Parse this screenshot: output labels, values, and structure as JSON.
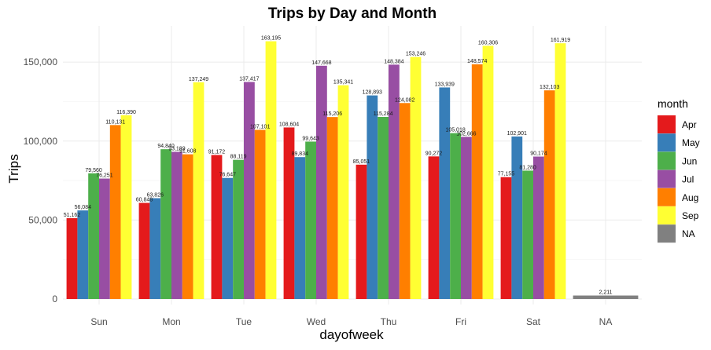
{
  "chart_data": {
    "type": "bar",
    "title": "Trips by Day and Month",
    "xlabel": "dayofweek",
    "ylabel": "Trips",
    "categories": [
      "Sun",
      "Mon",
      "Tue",
      "Wed",
      "Thu",
      "Fri",
      "Sat",
      "NA"
    ],
    "ylim": [
      0,
      170000
    ],
    "yticks": [
      0,
      50000,
      100000,
      150000
    ],
    "ytick_labels": [
      "0",
      "50,000",
      "100,000",
      "150,000"
    ],
    "grid": true,
    "legend": {
      "title": "month",
      "position": "right"
    },
    "series": [
      {
        "name": "Apr",
        "color": "#E41A1C",
        "values": [
          51162,
          60848,
          91172,
          108604,
          85051,
          90272,
          77155,
          null
        ],
        "labels": [
          "51,162",
          "60,848",
          "91,172",
          "108,604",
          "85,051",
          "90,272",
          "77,155",
          null
        ]
      },
      {
        "name": "May",
        "color": "#377EB8",
        "values": [
          56084,
          63826,
          76647,
          89834,
          128893,
          133939,
          102901,
          null
        ],
        "labels": [
          "56,084",
          "63,826",
          "76,647",
          "89,834",
          "128,893",
          "133,939",
          "102,901",
          null
        ]
      },
      {
        "name": "Jun",
        "color": "#4DAF4A",
        "values": [
          79560,
          94840,
          88119,
          99643,
          115284,
          105018,
          81280,
          null
        ],
        "labels": [
          "79,560",
          "94,840",
          "88,119",
          "99,643",
          "115,284",
          "105,018",
          "81,280",
          null
        ]
      },
      {
        "name": "Jul",
        "color": "#984EA3",
        "values": [
          76251,
          93189,
          137417,
          147668,
          148384,
          102666,
          90174,
          null
        ],
        "labels": [
          "76,251",
          "93,189",
          "137,417",
          "147,668",
          "148,384",
          "102,666",
          "90,174",
          null
        ]
      },
      {
        "name": "Aug",
        "color": "#FF7F00",
        "values": [
          110131,
          91608,
          107101,
          115206,
          124082,
          148574,
          132103,
          null
        ],
        "labels": [
          "110,131",
          "91,608",
          "107,101",
          "115,206",
          "124,082",
          "148,574",
          "132,103",
          null
        ]
      },
      {
        "name": "Sep",
        "color": "#FFFF33",
        "values": [
          116390,
          137249,
          163195,
          135341,
          153246,
          160306,
          161919,
          null
        ],
        "labels": [
          "116,390",
          "137,249",
          "163,195",
          "135,341",
          "153,246",
          "160,306",
          "161,919",
          null
        ]
      },
      {
        "name": "NA",
        "color": "#808080",
        "values": [
          null,
          null,
          null,
          null,
          null,
          null,
          null,
          2211
        ],
        "labels": [
          null,
          null,
          null,
          null,
          null,
          null,
          null,
          "2,211"
        ]
      }
    ]
  }
}
